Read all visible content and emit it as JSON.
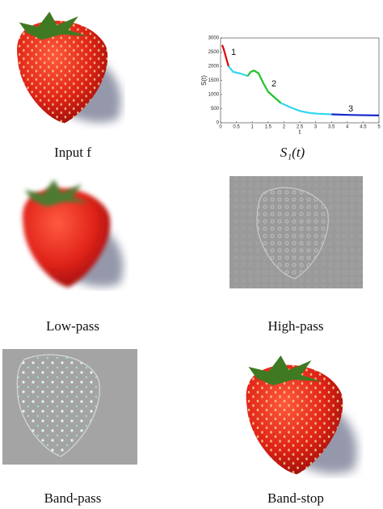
{
  "captions": [
    "Input f",
    "S₁(t)",
    "Low-pass",
    "High-pass",
    "Band-pass",
    "Band-stop"
  ],
  "chart_data": {
    "type": "line",
    "xlabel": "t",
    "ylabel": "S(t)",
    "xlim": [
      0,
      5
    ],
    "xticks": [
      0,
      0.5,
      1,
      1.5,
      2,
      2.5,
      3,
      3.5,
      4,
      4.5,
      5
    ],
    "ylim": [
      0,
      3000
    ],
    "yticks": [
      0,
      500,
      1000,
      1500,
      2000,
      2500,
      3000
    ],
    "annotations": [
      "1",
      "2",
      "3"
    ],
    "series": [
      {
        "color": "#e00000",
        "x": [
          0.05,
          0.1,
          0.15,
          0.2,
          0.25
        ],
        "values": [
          2750,
          2600,
          2400,
          2200,
          2000
        ]
      },
      {
        "color": "#33d6f0",
        "x": [
          0.25,
          0.4,
          0.6,
          0.75,
          0.85
        ],
        "values": [
          2000,
          1800,
          1750,
          1700,
          1650
        ]
      },
      {
        "color": "#22c22a",
        "x": [
          0.85,
          0.95,
          1.05,
          1.2,
          1.35,
          1.5,
          1.7,
          1.9
        ],
        "values": [
          1650,
          1800,
          1850,
          1750,
          1400,
          1100,
          900,
          700
        ]
      },
      {
        "color": "#33d6f0",
        "x": [
          1.9,
          2.2,
          2.5,
          2.8,
          3.1,
          3.5
        ],
        "values": [
          700,
          550,
          420,
          350,
          320,
          300
        ]
      },
      {
        "color": "#1428c8",
        "x": [
          3.5,
          4,
          4.5,
          5
        ],
        "values": [
          300,
          280,
          270,
          260
        ]
      }
    ]
  }
}
